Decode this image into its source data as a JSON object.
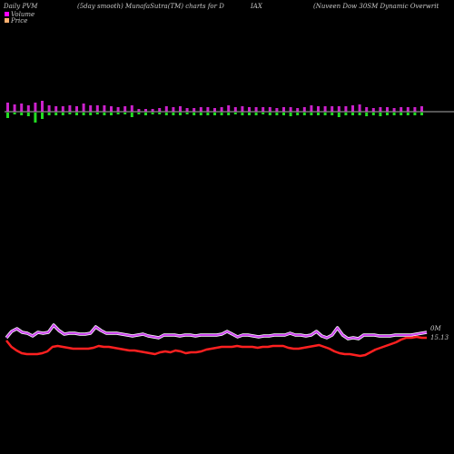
{
  "header": {
    "left": "Daily PVM",
    "middle": "(5day smooth) MunafaSutra(TM) charts for D",
    "ticker": "IAX",
    "right": "(Nuveen  Dow  30SM Dynamic Overwrit"
  },
  "legend": [
    {
      "label": "Volume",
      "color": "#ff00ff"
    },
    {
      "label": "Price",
      "color": "#ffb070"
    }
  ],
  "colors": {
    "up_bar": "#cc22cc",
    "down_bar": "#22dd22",
    "axis": "#aaaaaa",
    "price_line": "#ff2020",
    "volume_line": "#cc44ee",
    "volume_halo": "#ffffff"
  },
  "chart_data": {
    "type": "line",
    "volume_label": "0M",
    "price_label": "15.13",
    "pvm_bars": [
      {
        "up": 10,
        "down": 6
      },
      {
        "up": 8,
        "down": 2
      },
      {
        "up": 9,
        "down": 3
      },
      {
        "up": 7,
        "down": 4
      },
      {
        "up": 10,
        "down": 11
      },
      {
        "up": 12,
        "down": 7
      },
      {
        "up": 7,
        "down": 3
      },
      {
        "up": 6,
        "down": 3
      },
      {
        "up": 6,
        "down": 3
      },
      {
        "up": 7,
        "down": 2
      },
      {
        "up": 6,
        "down": 3
      },
      {
        "up": 9,
        "down": 3
      },
      {
        "up": 7,
        "down": 3
      },
      {
        "up": 7,
        "down": 2
      },
      {
        "up": 7,
        "down": 3
      },
      {
        "up": 6,
        "down": 3
      },
      {
        "up": 5,
        "down": 2
      },
      {
        "up": 6,
        "down": 2
      },
      {
        "up": 7,
        "down": 5
      },
      {
        "up": 3,
        "down": 2
      },
      {
        "up": 3,
        "down": 3
      },
      {
        "up": 3,
        "down": 2
      },
      {
        "up": 4,
        "down": 2
      },
      {
        "up": 6,
        "down": 3
      },
      {
        "up": 5,
        "down": 3
      },
      {
        "up": 6,
        "down": 3
      },
      {
        "up": 4,
        "down": 2
      },
      {
        "up": 4,
        "down": 3
      },
      {
        "up": 5,
        "down": 3
      },
      {
        "up": 5,
        "down": 3
      },
      {
        "up": 4,
        "down": 3
      },
      {
        "up": 5,
        "down": 3
      },
      {
        "up": 7,
        "down": 3
      },
      {
        "up": 5,
        "down": 2
      },
      {
        "up": 6,
        "down": 3
      },
      {
        "up": 5,
        "down": 3
      },
      {
        "up": 5,
        "down": 3
      },
      {
        "up": 5,
        "down": 2
      },
      {
        "up": 5,
        "down": 3
      },
      {
        "up": 4,
        "down": 3
      },
      {
        "up": 5,
        "down": 3
      },
      {
        "up": 5,
        "down": 4
      },
      {
        "up": 4,
        "down": 3
      },
      {
        "up": 5,
        "down": 3
      },
      {
        "up": 7,
        "down": 3
      },
      {
        "up": 6,
        "down": 3
      },
      {
        "up": 6,
        "down": 3
      },
      {
        "up": 6,
        "down": 3
      },
      {
        "up": 6,
        "down": 5
      },
      {
        "up": 6,
        "down": 3
      },
      {
        "up": 7,
        "down": 3
      },
      {
        "up": 8,
        "down": 3
      },
      {
        "up": 5,
        "down": 4
      },
      {
        "up": 4,
        "down": 3
      },
      {
        "up": 5,
        "down": 4
      },
      {
        "up": 5,
        "down": 3
      },
      {
        "up": 4,
        "down": 3
      },
      {
        "up": 5,
        "down": 3
      },
      {
        "up": 5,
        "down": 3
      },
      {
        "up": 5,
        "down": 3
      },
      {
        "up": 6,
        "down": 3
      }
    ],
    "volume_series": [
      48,
      55,
      58,
      54,
      53,
      50,
      54,
      53,
      54,
      62,
      56,
      52,
      53,
      53,
      52,
      52,
      53,
      60,
      56,
      53,
      53,
      53,
      52,
      51,
      50,
      51,
      52,
      50,
      49,
      48,
      51,
      51,
      51,
      50,
      51,
      51,
      50,
      51,
      51,
      51,
      51,
      52,
      55,
      52,
      49,
      51,
      51,
      50,
      49,
      50,
      50,
      51,
      51,
      51,
      53,
      51,
      51,
      50,
      51,
      55,
      50,
      48,
      51,
      59,
      51,
      47,
      48,
      47,
      51,
      51,
      51,
      50,
      50,
      50,
      51,
      51,
      51,
      51,
      52,
      53,
      54
    ],
    "price_series": [
      45,
      38,
      34,
      31,
      30,
      30,
      30,
      31,
      33,
      38,
      39,
      38,
      37,
      36,
      36,
      36,
      36,
      37,
      39,
      38,
      38,
      37,
      36,
      35,
      34,
      34,
      33,
      32,
      31,
      30,
      32,
      33,
      32,
      34,
      33,
      31,
      32,
      32,
      33,
      35,
      36,
      37,
      38,
      38,
      38,
      39,
      38,
      38,
      38,
      37,
      38,
      38,
      39,
      39,
      39,
      37,
      36,
      36,
      37,
      38,
      39,
      40,
      38,
      36,
      33,
      31,
      30,
      30,
      29,
      28,
      29,
      32,
      35,
      37,
      39,
      41,
      43,
      46,
      48,
      48,
      49,
      48,
      48
    ]
  }
}
